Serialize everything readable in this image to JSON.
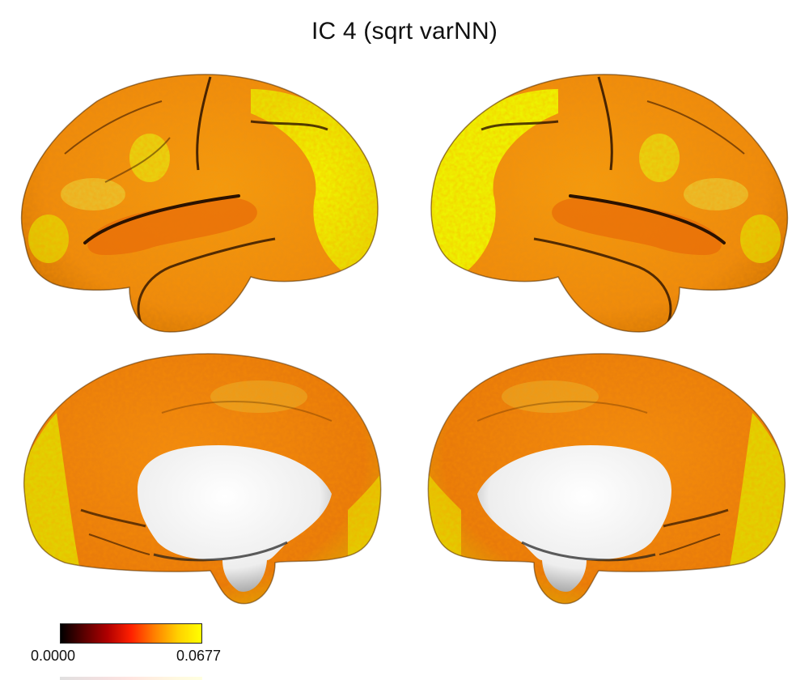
{
  "title": "IC 4 (sqrt varNN)",
  "colorbar": {
    "min_label": "0.0000",
    "max_label": "0.0677",
    "colormap": [
      "#000000",
      "#5a0000",
      "#b00000",
      "#ff2000",
      "#ff8000",
      "#ffd000",
      "#ffff00"
    ]
  },
  "surface_colors": {
    "high": "#e8ec00",
    "mid": "#ff8a00",
    "low": "#f06010",
    "wall": "#ffffff"
  }
}
